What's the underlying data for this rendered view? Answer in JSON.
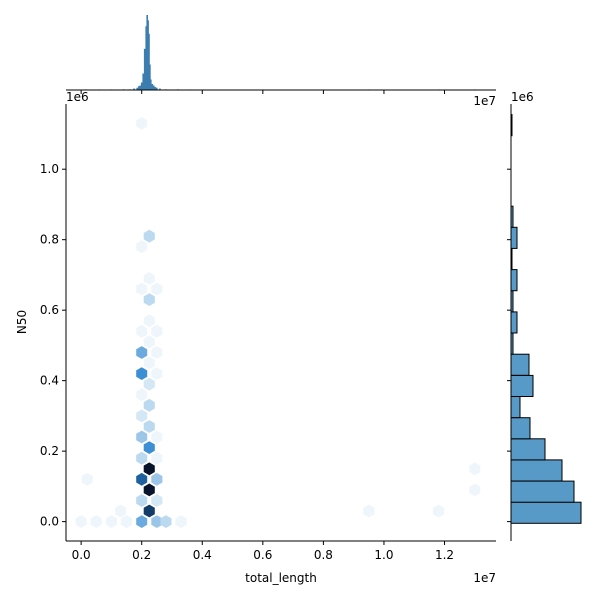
{
  "chart_data": {
    "type": "jointplot-hexbin",
    "xlabel": "total_length",
    "ylabel": "N50",
    "x_offset_label": "1e7",
    "y_offset_label": "1e6",
    "top_offset_label": "1e7",
    "side_offset_label": "1e6",
    "x_ticks": [
      0.0,
      0.2,
      0.4,
      0.6,
      0.8,
      1.0,
      1.2
    ],
    "x_tick_labels": [
      "0.0",
      "0.2",
      "0.4",
      "0.6",
      "0.8",
      "1.0",
      "1.2"
    ],
    "y_ticks": [
      0.0,
      0.2,
      0.4,
      0.6,
      0.8,
      1.0
    ],
    "y_tick_labels": [
      "0.0",
      "0.2",
      "0.4",
      "0.6",
      "0.8",
      "1.0"
    ],
    "xlim": [
      -0.05,
      1.37
    ],
    "ylim": [
      -0.055,
      1.185
    ],
    "units_note": "x in units of 1e7, y in units of 1e6",
    "hexbins": [
      {
        "x": 0.0,
        "y": 0.0,
        "c": 1
      },
      {
        "x": 0.05,
        "y": 0.0,
        "c": 1
      },
      {
        "x": 0.1,
        "y": 0.0,
        "c": 1
      },
      {
        "x": 0.15,
        "y": 0.0,
        "c": 1
      },
      {
        "x": 0.2,
        "y": 0.0,
        "c": 5
      },
      {
        "x": 0.25,
        "y": 0.0,
        "c": 4
      },
      {
        "x": 0.28,
        "y": 0.0,
        "c": 3
      },
      {
        "x": 0.33,
        "y": 0.0,
        "c": 1
      },
      {
        "x": 0.02,
        "y": 0.12,
        "c": 1
      },
      {
        "x": 0.13,
        "y": 0.03,
        "c": 1
      },
      {
        "x": 0.2,
        "y": 0.06,
        "c": 3
      },
      {
        "x": 0.225,
        "y": 0.03,
        "c": 9
      },
      {
        "x": 0.25,
        "y": 0.06,
        "c": 2
      },
      {
        "x": 0.2,
        "y": 0.12,
        "c": 8
      },
      {
        "x": 0.225,
        "y": 0.09,
        "c": 10
      },
      {
        "x": 0.25,
        "y": 0.12,
        "c": 4
      },
      {
        "x": 0.225,
        "y": 0.15,
        "c": 10
      },
      {
        "x": 0.2,
        "y": 0.18,
        "c": 3
      },
      {
        "x": 0.25,
        "y": 0.18,
        "c": 1
      },
      {
        "x": 0.225,
        "y": 0.21,
        "c": 6
      },
      {
        "x": 0.2,
        "y": 0.24,
        "c": 4
      },
      {
        "x": 0.225,
        "y": 0.27,
        "c": 3
      },
      {
        "x": 0.25,
        "y": 0.24,
        "c": 1
      },
      {
        "x": 0.2,
        "y": 0.3,
        "c": 2
      },
      {
        "x": 0.225,
        "y": 0.33,
        "c": 3
      },
      {
        "x": 0.2,
        "y": 0.36,
        "c": 1
      },
      {
        "x": 0.225,
        "y": 0.39,
        "c": 2
      },
      {
        "x": 0.2,
        "y": 0.42,
        "c": 6
      },
      {
        "x": 0.25,
        "y": 0.42,
        "c": 1
      },
      {
        "x": 0.225,
        "y": 0.45,
        "c": 1
      },
      {
        "x": 0.2,
        "y": 0.48,
        "c": 5
      },
      {
        "x": 0.25,
        "y": 0.48,
        "c": 1
      },
      {
        "x": 0.225,
        "y": 0.51,
        "c": 1
      },
      {
        "x": 0.2,
        "y": 0.54,
        "c": 1
      },
      {
        "x": 0.25,
        "y": 0.54,
        "c": 1
      },
      {
        "x": 0.225,
        "y": 0.57,
        "c": 1
      },
      {
        "x": 0.225,
        "y": 0.63,
        "c": 3
      },
      {
        "x": 0.2,
        "y": 0.66,
        "c": 1
      },
      {
        "x": 0.25,
        "y": 0.66,
        "c": 1
      },
      {
        "x": 0.225,
        "y": 0.69,
        "c": 1
      },
      {
        "x": 0.2,
        "y": 0.78,
        "c": 1
      },
      {
        "x": 0.225,
        "y": 0.81,
        "c": 3
      },
      {
        "x": 0.2,
        "y": 1.13,
        "c": 1
      },
      {
        "x": 0.95,
        "y": 0.03,
        "c": 1
      },
      {
        "x": 1.18,
        "y": 0.03,
        "c": 1
      },
      {
        "x": 1.3,
        "y": 0.09,
        "c": 1
      },
      {
        "x": 1.3,
        "y": 0.15,
        "c": 1
      }
    ],
    "top_hist": [
      {
        "x": 0.015,
        "h": 0.002
      },
      {
        "x": 0.06,
        "h": 0.004
      },
      {
        "x": 0.1,
        "h": 0.004
      },
      {
        "x": 0.14,
        "h": 0.01
      },
      {
        "x": 0.16,
        "h": 0.01
      },
      {
        "x": 0.175,
        "h": 0.02
      },
      {
        "x": 0.185,
        "h": 0.03
      },
      {
        "x": 0.19,
        "h": 0.05
      },
      {
        "x": 0.195,
        "h": 0.06
      },
      {
        "x": 0.2,
        "h": 0.1
      },
      {
        "x": 0.205,
        "h": 0.22
      },
      {
        "x": 0.21,
        "h": 0.55
      },
      {
        "x": 0.215,
        "h": 0.85
      },
      {
        "x": 0.218,
        "h": 1.0
      },
      {
        "x": 0.221,
        "h": 0.93
      },
      {
        "x": 0.224,
        "h": 0.75
      },
      {
        "x": 0.227,
        "h": 0.34
      },
      {
        "x": 0.23,
        "h": 0.14
      },
      {
        "x": 0.235,
        "h": 0.08
      },
      {
        "x": 0.24,
        "h": 0.06
      },
      {
        "x": 0.245,
        "h": 0.04
      },
      {
        "x": 0.25,
        "h": 0.03
      },
      {
        "x": 0.26,
        "h": 0.02
      },
      {
        "x": 0.28,
        "h": 0.01
      },
      {
        "x": 0.32,
        "h": 0.01
      },
      {
        "x": 0.36,
        "h": 0.004
      },
      {
        "x": 0.95,
        "h": 0.003
      },
      {
        "x": 1.18,
        "h": 0.003
      },
      {
        "x": 1.3,
        "h": 0.003
      }
    ],
    "side_hist": [
      {
        "y0": -0.005,
        "y1": 0.055,
        "count": 70
      },
      {
        "y0": 0.055,
        "y1": 0.115,
        "count": 63
      },
      {
        "y0": 0.115,
        "y1": 0.175,
        "count": 51
      },
      {
        "y0": 0.175,
        "y1": 0.235,
        "count": 34
      },
      {
        "y0": 0.235,
        "y1": 0.295,
        "count": 19
      },
      {
        "y0": 0.295,
        "y1": 0.355,
        "count": 9
      },
      {
        "y0": 0.355,
        "y1": 0.415,
        "count": 22
      },
      {
        "y0": 0.415,
        "y1": 0.475,
        "count": 18
      },
      {
        "y0": 0.475,
        "y1": 0.535,
        "count": 2
      },
      {
        "y0": 0.535,
        "y1": 0.595,
        "count": 6
      },
      {
        "y0": 0.595,
        "y1": 0.655,
        "count": 2
      },
      {
        "y0": 0.655,
        "y1": 0.715,
        "count": 6
      },
      {
        "y0": 0.715,
        "y1": 0.775,
        "count": 1
      },
      {
        "y0": 0.775,
        "y1": 0.835,
        "count": 6
      },
      {
        "y0": 0.835,
        "y1": 0.895,
        "count": 2
      },
      {
        "y0": 1.095,
        "y1": 1.155,
        "count": 1
      }
    ],
    "colors": {
      "hex_light": "#eef5fb",
      "hex_dark": "#08142b",
      "hist_fill": "#5799c7",
      "top_hist_fill": "#3d7db0"
    }
  }
}
